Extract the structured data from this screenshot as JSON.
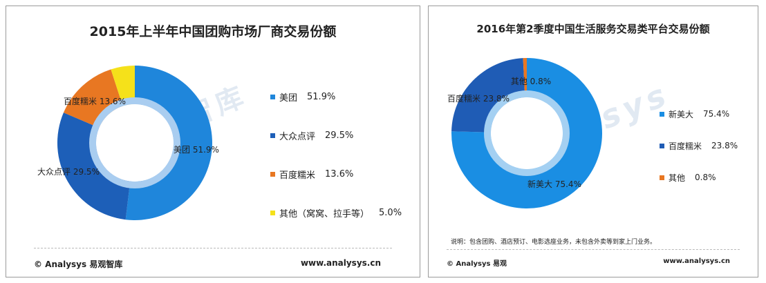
{
  "chart_data": [
    {
      "type": "pie",
      "title": "2015年上半年中国团购市场厂商交易份额",
      "categories": [
        "美团",
        "大众点评",
        "百度糯米",
        "其他（窝窝、拉手等）"
      ],
      "values": [
        51.9,
        29.5,
        13.6,
        5.0
      ],
      "value_labels": [
        "51.9%",
        "29.5%",
        "13.6%",
        "5.0%"
      ],
      "slice_labels": [
        "美团 51.9%",
        "大众点评 29.5%",
        "百度糯米 13.6%",
        ""
      ],
      "colors": [
        "#1f86db",
        "#1d5fb8",
        "#e87722",
        "#f5e11a"
      ],
      "legend_position": "right",
      "watermark": "易观智库",
      "footer_left": "© Analysys 易观智库",
      "footer_right": "www.analysys.cn"
    },
    {
      "type": "pie",
      "title": "2016年第2季度中国生活服务交易类平台交易份额",
      "categories": [
        "新美大",
        "百度糯米",
        "其他"
      ],
      "values": [
        75.4,
        23.8,
        0.8
      ],
      "value_labels": [
        "75.4%",
        "23.8%",
        "0.8%"
      ],
      "slice_labels": [
        "新美大 75.4%",
        "百度糯米 23.8%",
        "其他 0.8%"
      ],
      "colors": [
        "#1a8ee3",
        "#1f5cb5",
        "#e87722"
      ],
      "legend_position": "right",
      "watermark": "Analysys",
      "note": "说明：包含团购、酒店预订、电影选座业务，未包含外卖等到家上门业务。",
      "footer_left": "© Analysys 易观",
      "footer_right": "www.analysys.cn"
    }
  ]
}
